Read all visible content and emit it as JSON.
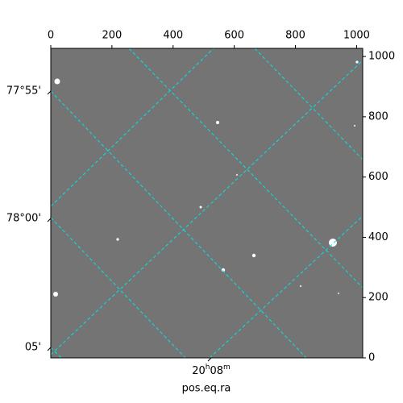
{
  "chart_data": {
    "type": "image",
    "xlabel": "pos.eq.ra",
    "xlim": [
      0,
      1020
    ],
    "xticks": [
      0,
      200,
      400,
      600,
      800,
      1000
    ],
    "ylim": [
      0,
      1027
    ],
    "yticks": [
      0,
      200,
      400,
      600,
      800,
      1000
    ],
    "dec_tick_labels": [
      "77°55'",
      "78°00'",
      "05'"
    ],
    "ra_tick_labels": [
      [
        "20",
        "h",
        "08",
        "m"
      ]
    ]
  }
}
